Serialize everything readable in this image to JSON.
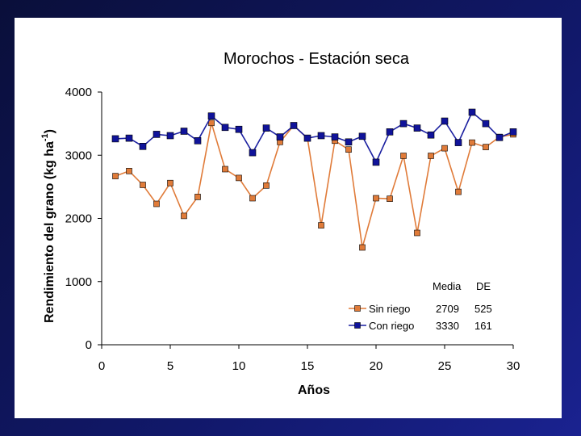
{
  "chart_data": {
    "type": "line",
    "title": "Morochos - Estación seca",
    "xlabel": "Años",
    "ylabel_main": "Rendimiento del grano (kg ha",
    "ylabel_sup": "-1",
    "ylabel_end": ")",
    "xlim": [
      0,
      30
    ],
    "ylim": [
      0,
      4000
    ],
    "xticks": [
      0,
      5,
      10,
      15,
      20,
      25,
      30
    ],
    "yticks": [
      0,
      1000,
      2000,
      3000,
      4000
    ],
    "x": [
      1,
      2,
      3,
      4,
      5,
      6,
      7,
      8,
      9,
      10,
      11,
      12,
      13,
      14,
      15,
      16,
      17,
      18,
      19,
      20,
      21,
      22,
      23,
      24,
      25,
      26,
      27,
      28,
      29,
      30
    ],
    "series": [
      {
        "name": "Sin riego",
        "color": "#e07b39",
        "marker_color": "#e07b39",
        "values": [
          2670,
          2750,
          2530,
          2230,
          2560,
          2040,
          2340,
          3510,
          2780,
          2640,
          2320,
          2520,
          3210,
          3470,
          3270,
          1890,
          3230,
          3090,
          1540,
          2320,
          2310,
          2990,
          1770,
          2990,
          3110,
          2420,
          3200,
          3130,
          3290,
          3330
        ]
      },
      {
        "name": "Con riego",
        "color": "#1a1fa0",
        "marker_color": "#10139a",
        "values": [
          3260,
          3270,
          3140,
          3330,
          3310,
          3380,
          3230,
          3620,
          3440,
          3410,
          3040,
          3430,
          3290,
          3470,
          3270,
          3310,
          3290,
          3210,
          3300,
          2890,
          3370,
          3500,
          3430,
          3320,
          3540,
          3200,
          3680,
          3500,
          3280,
          3370
        ]
      }
    ],
    "legend": {
      "header_mean": "Media",
      "header_sd": "DE",
      "rows": [
        {
          "label": "Sin riego",
          "mean": "2709",
          "sd": "525"
        },
        {
          "label": "Con riego",
          "mean": "3330",
          "sd": "161"
        }
      ]
    }
  }
}
